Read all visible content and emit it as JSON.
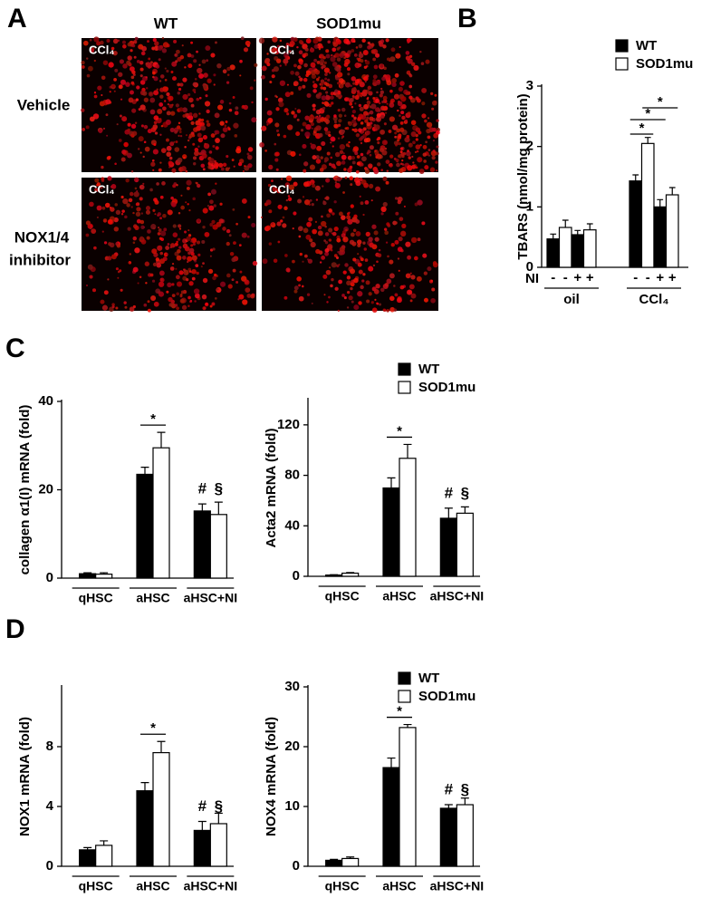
{
  "panel_labels": [
    "A",
    "B",
    "C",
    "D"
  ],
  "microscopy": {
    "columns": [
      "WT",
      "SOD1mu"
    ],
    "rows": [
      {
        "lines": [
          "Vehicle"
        ]
      },
      {
        "lines": [
          "NOX1/4",
          "inhibitor"
        ]
      }
    ],
    "image_label": "CCl₄"
  },
  "chart_data": [
    {
      "type": "grouped_bar_conditions",
      "ylabel": "TBARS (nmol/mg protein)",
      "ylim": [
        0,
        3
      ],
      "yticks": [
        0,
        1,
        2,
        3
      ],
      "groups": [
        "oil",
        "CCl₄"
      ],
      "condition_label": "NI",
      "conditions": [
        "-",
        "+",
        "-",
        "+"
      ],
      "series": [
        {
          "name": "WT",
          "color": "#000000",
          "values": [
            0.47,
            0.54,
            1.43,
            1.0
          ],
          "errors": [
            0.08,
            0.07,
            0.1,
            0.12
          ]
        },
        {
          "name": "SOD1mu",
          "color": "#ffffff",
          "values": [
            0.66,
            0.62,
            2.05,
            1.2
          ],
          "errors": [
            0.12,
            0.1,
            0.1,
            0.12
          ]
        }
      ],
      "significance": [
        "*",
        "*",
        "*"
      ],
      "legend": true
    },
    {
      "type": "bar",
      "ylabel": "collagen α1(I) mRNA (fold)",
      "ylim": [
        0,
        40
      ],
      "yticks": [
        0,
        20,
        40
      ],
      "categories": [
        "qHSC",
        "aHSC",
        "aHSC+NI"
      ],
      "series": [
        {
          "name": "WT",
          "color": "#000000",
          "values": [
            1.0,
            23.5,
            15.2
          ],
          "errors": [
            0.2,
            1.6,
            1.6
          ]
        },
        {
          "name": "SOD1mu",
          "color": "#ffffff",
          "values": [
            0.9,
            29.5,
            14.4
          ],
          "errors": [
            0.3,
            3.5,
            2.8
          ]
        }
      ],
      "significance": [
        "*",
        "#",
        "§"
      ],
      "legend": true
    },
    {
      "type": "bar",
      "ylabel": "Acta2 mRNA (fold)",
      "ylim": [
        0,
        140
      ],
      "yticks": [
        0,
        40,
        80,
        120
      ],
      "categories": [
        "qHSC",
        "aHSC",
        "aHSC+NI"
      ],
      "series": [
        {
          "name": "WT",
          "color": "#000000",
          "values": [
            1,
            70,
            46
          ],
          "errors": [
            0.3,
            8,
            8
          ]
        },
        {
          "name": "SOD1mu",
          "color": "#ffffff",
          "values": [
            2.5,
            93.5,
            50
          ],
          "errors": [
            0.5,
            11,
            5
          ]
        }
      ],
      "significance": [
        "*",
        "#",
        "§"
      ],
      "legend": false
    },
    {
      "type": "bar",
      "ylabel": "NOX1 mRNA (fold)",
      "ylim": [
        0,
        12
      ],
      "yticks": [
        0,
        4,
        8
      ],
      "categories": [
        "qHSC",
        "aHSC",
        "aHSC+NI"
      ],
      "series": [
        {
          "name": "WT",
          "color": "#000000",
          "values": [
            1.1,
            5.05,
            2.4
          ],
          "errors": [
            0.15,
            0.55,
            0.6
          ]
        },
        {
          "name": "SOD1mu",
          "color": "#ffffff",
          "values": [
            1.4,
            7.6,
            2.85
          ],
          "errors": [
            0.3,
            0.75,
            0.7
          ]
        }
      ],
      "significance": [
        "*",
        "#",
        "§"
      ],
      "legend": true
    },
    {
      "type": "bar",
      "ylabel": "NOX4 mRNA (fold)",
      "ylim": [
        0,
        30
      ],
      "yticks": [
        0,
        10,
        20,
        30
      ],
      "categories": [
        "qHSC",
        "aHSC",
        "aHSC+NI"
      ],
      "series": [
        {
          "name": "WT",
          "color": "#000000",
          "values": [
            1.0,
            16.5,
            9.7
          ],
          "errors": [
            0.15,
            1.6,
            0.6
          ]
        },
        {
          "name": "SOD1mu",
          "color": "#ffffff",
          "values": [
            1.3,
            23.2,
            10.3
          ],
          "errors": [
            0.25,
            0.5,
            1.1
          ]
        }
      ],
      "significance": [
        "*",
        "#",
        "§"
      ],
      "legend": false
    }
  ]
}
